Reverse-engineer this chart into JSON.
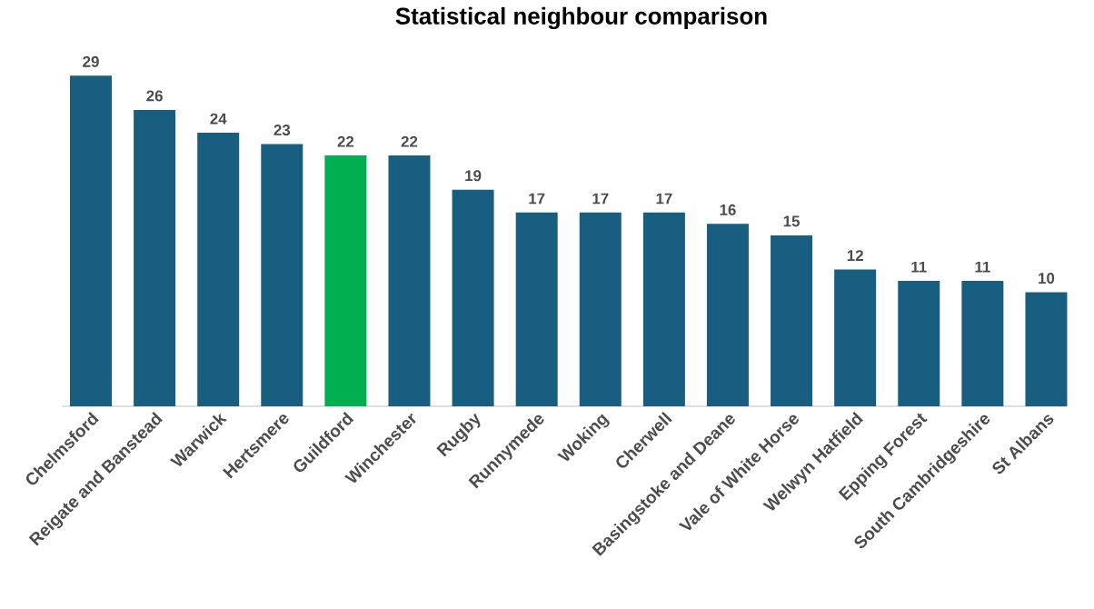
{
  "chart_data": {
    "type": "bar",
    "title": "Statistical neighbour comparison",
    "categories": [
      "Chelmsford",
      "Reigate and Banstead",
      "Warwick",
      "Hertsmere",
      "Guildford",
      "Winchester",
      "Rugby",
      "Runnymede",
      "Woking",
      "Cherwell",
      "Basingstoke and Deane",
      "Vale of White Horse",
      "Welwyn Hatfield",
      "Epping Forest",
      "South Cambridgeshire",
      "St Albans"
    ],
    "values": [
      29,
      26,
      24,
      23,
      22,
      22,
      19,
      17,
      17,
      17,
      16,
      15,
      12,
      11,
      11,
      10
    ],
    "colors": [
      "#175e80",
      "#175e80",
      "#175e80",
      "#175e80",
      "#00b050",
      "#175e80",
      "#175e80",
      "#175e80",
      "#175e80",
      "#175e80",
      "#175e80",
      "#175e80",
      "#175e80",
      "#175e80",
      "#175e80",
      "#175e80"
    ],
    "data_labels": true
  }
}
